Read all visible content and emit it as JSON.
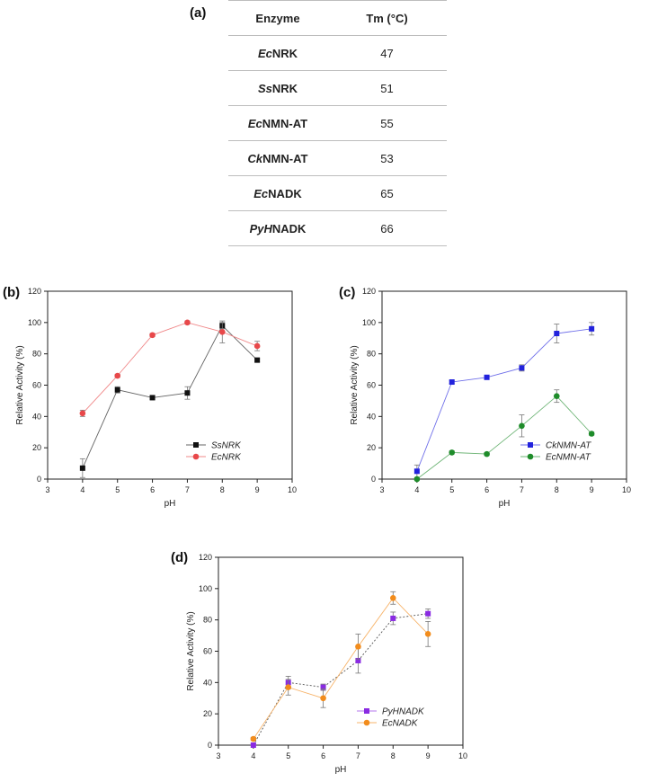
{
  "panel_labels": {
    "a": "(a)",
    "b": "(b)",
    "c": "(c)",
    "d": "(d)"
  },
  "table": {
    "headers": [
      "Enzyme",
      "Tm (°C)"
    ],
    "rows": [
      {
        "prefix": "Ec",
        "suffix": "NRK",
        "tm": "47"
      },
      {
        "prefix": "Ss",
        "suffix": "NRK",
        "tm": "51"
      },
      {
        "prefix": "Ec",
        "suffix": "NMN-AT",
        "tm": "55"
      },
      {
        "prefix": "Ck",
        "suffix": "NMN-AT",
        "tm": "53"
      },
      {
        "prefix": "Ec",
        "suffix": "NADK",
        "tm": "65"
      },
      {
        "prefix": "PyH",
        "suffix": "NADK",
        "tm": "66"
      }
    ]
  },
  "chart_data": [
    {
      "type": "line",
      "panel": "b",
      "xlabel": "pH",
      "ylabel": "Relative Activity (%)",
      "xlim": [
        3,
        10
      ],
      "ylim": [
        0,
        120
      ],
      "xticks": [
        3,
        4,
        5,
        6,
        7,
        8,
        9,
        10
      ],
      "yticks": [
        0,
        20,
        40,
        60,
        80,
        100,
        120
      ],
      "legend_position": "bottom-right",
      "grid": false,
      "series": [
        {
          "name": "SsNRK",
          "color": "#111111",
          "marker": "square",
          "x": [
            4,
            5,
            6,
            7,
            8,
            9
          ],
          "y": [
            7,
            57,
            52,
            55,
            98,
            76
          ],
          "err": [
            6,
            2,
            1,
            4,
            2,
            1
          ]
        },
        {
          "name": "EcNRK",
          "color": "#e8484a",
          "marker": "circle",
          "x": [
            4,
            5,
            6,
            7,
            8,
            9
          ],
          "y": [
            42,
            66,
            92,
            100,
            94,
            85
          ],
          "err": [
            2,
            1,
            1,
            1,
            7,
            3
          ]
        }
      ]
    },
    {
      "type": "line",
      "panel": "c",
      "xlabel": "pH",
      "ylabel": "Relative Activity (%)",
      "xlim": [
        3,
        10
      ],
      "ylim": [
        0,
        120
      ],
      "xticks": [
        3,
        4,
        5,
        6,
        7,
        8,
        9,
        10
      ],
      "yticks": [
        0,
        20,
        40,
        60,
        80,
        100,
        120
      ],
      "legend_position": "bottom-right",
      "grid": false,
      "series": [
        {
          "name": "CkNMN-AT",
          "color": "#2222dd",
          "marker": "square",
          "x": [
            4,
            5,
            6,
            7,
            8,
            9
          ],
          "y": [
            5,
            62,
            65,
            71,
            93,
            96
          ],
          "err": [
            4,
            1,
            1,
            2,
            6,
            4
          ]
        },
        {
          "name": "EcNMN-AT",
          "color": "#1e8c2a",
          "marker": "circle",
          "x": [
            4,
            5,
            6,
            7,
            8,
            9
          ],
          "y": [
            0,
            17,
            16,
            34,
            53,
            29
          ],
          "err": [
            0,
            1,
            1,
            7,
            4,
            1
          ]
        }
      ]
    },
    {
      "type": "line",
      "panel": "d",
      "xlabel": "pH",
      "ylabel": "Relative Activity (%)",
      "xlim": [
        3,
        10
      ],
      "ylim": [
        0,
        120
      ],
      "xticks": [
        3,
        4,
        5,
        6,
        7,
        8,
        9,
        10
      ],
      "yticks": [
        0,
        20,
        40,
        60,
        80,
        100,
        120
      ],
      "legend_position": "bottom-right",
      "grid": false,
      "series": [
        {
          "name": "PyHNADK",
          "color": "#8a2be2",
          "marker": "square",
          "dash": true,
          "x": [
            4,
            5,
            6,
            7,
            8,
            9
          ],
          "y": [
            0,
            40,
            37,
            54,
            81,
            84
          ],
          "err": [
            1,
            4,
            2,
            8,
            4,
            3
          ]
        },
        {
          "name": "EcNADK",
          "color": "#f28c1c",
          "marker": "circle",
          "x": [
            4,
            5,
            6,
            7,
            8,
            9
          ],
          "y": [
            4,
            37,
            30,
            63,
            94,
            71
          ],
          "err": [
            1,
            5,
            6,
            8,
            4,
            8
          ]
        }
      ]
    }
  ]
}
